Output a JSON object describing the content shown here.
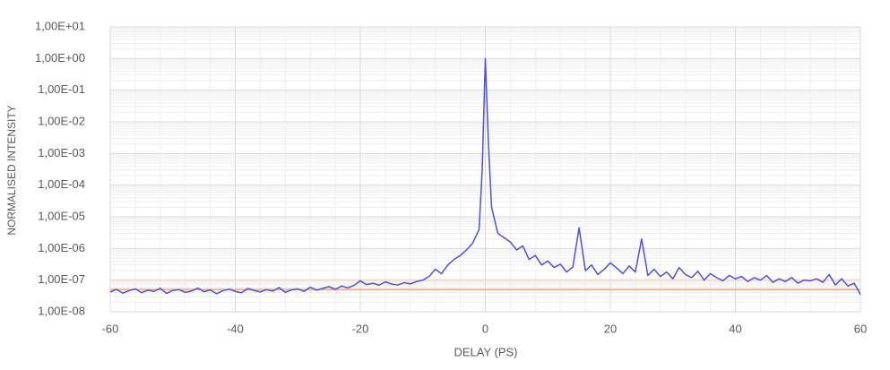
{
  "chart_data": {
    "type": "line",
    "x_label": "DELAY (PS)",
    "y_label": "NORMALISED INTENSITY",
    "x": [
      -60,
      -59,
      -58,
      -57,
      -56,
      -55,
      -54,
      -53,
      -52,
      -51,
      -50,
      -49,
      -48,
      -47,
      -46,
      -45,
      -44,
      -43,
      -42,
      -41,
      -40,
      -39,
      -38,
      -37,
      -36,
      -35,
      -34,
      -33,
      -32,
      -31,
      -30,
      -29,
      -28,
      -27,
      -26,
      -25,
      -24,
      -23,
      -22,
      -21,
      -20,
      -19,
      -18,
      -17,
      -16,
      -15,
      -14,
      -13,
      -12,
      -11,
      -10,
      -9,
      -8,
      -7,
      -6,
      -5,
      -4,
      -3,
      -2,
      -1,
      -0.5,
      0,
      0.5,
      1,
      2,
      3,
      4,
      5,
      6,
      7,
      8,
      9,
      10,
      11,
      12,
      13,
      14,
      15,
      16,
      17,
      18,
      19,
      20,
      21,
      22,
      23,
      24,
      25,
      26,
      27,
      28,
      29,
      30,
      31,
      32,
      33,
      34,
      35,
      36,
      37,
      38,
      39,
      40,
      41,
      42,
      43,
      44,
      45,
      46,
      47,
      48,
      49,
      50,
      51,
      52,
      53,
      54,
      55,
      56,
      57,
      58,
      59,
      60
    ],
    "series": [
      {
        "color": "#4f4fe0",
        "values": [
          4.2e-08,
          5.1e-08,
          3.9e-08,
          4.6e-08,
          5.3e-08,
          4e-08,
          4.8e-08,
          4.4e-08,
          5.5e-08,
          3.8e-08,
          4.7e-08,
          5e-08,
          4.1e-08,
          4.5e-08,
          5.6e-08,
          4.3e-08,
          4.9e-08,
          3.7e-08,
          4.6e-08,
          5.2e-08,
          4.4e-08,
          4e-08,
          5.4e-08,
          4.7e-08,
          4.2e-08,
          5e-08,
          4.5e-08,
          5.8e-08,
          4.1e-08,
          4.9e-08,
          5.3e-08,
          4.4e-08,
          6e-08,
          4.8e-08,
          5.5e-08,
          6.2e-08,
          5.1e-08,
          6.5e-08,
          5.7e-08,
          6.8e-08,
          9.5e-08,
          7.2e-08,
          8e-08,
          6.9e-08,
          8.8e-08,
          7.5e-08,
          7e-08,
          8.3e-08,
          7.6e-08,
          9e-08,
          1e-07,
          1.3e-07,
          2.2e-07,
          1.6e-07,
          3e-07,
          4.5e-07,
          6e-07,
          9e-07,
          1.5e-06,
          4e-06,
          0.0003,
          1.0,
          0.002,
          2e-05,
          3e-06,
          2.2e-06,
          1.6e-06,
          9e-07,
          1.2e-06,
          4.5e-07,
          6e-07,
          3e-07,
          4e-07,
          2.5e-07,
          3.2e-07,
          1.8e-07,
          2.6e-07,
          4.5e-06,
          2e-07,
          3e-07,
          1.5e-07,
          2.2e-07,
          3.5e-07,
          2.4e-07,
          1.6e-07,
          2.8e-07,
          1.8e-07,
          2e-06,
          1.4e-07,
          2.2e-07,
          1.3e-07,
          1.8e-07,
          1.1e-07,
          2.5e-07,
          1.5e-07,
          1.2e-07,
          1.9e-07,
          1e-07,
          1.6e-07,
          1.2e-07,
          9.5e-08,
          1.4e-07,
          1.1e-07,
          1.3e-07,
          9e-08,
          1.2e-07,
          1e-07,
          1.4e-07,
          8.5e-08,
          1.1e-07,
          9e-08,
          1.2e-07,
          8e-08,
          1e-07,
          9.5e-08,
          1.1e-07,
          8.5e-08,
          1.5e-07,
          7e-08,
          1.1e-07,
          6.5e-08,
          8e-08,
          3.5e-08
        ]
      }
    ],
    "hlines": [
      {
        "value": 1e-07,
        "color": "#f8d9c4"
      },
      {
        "value": 5e-08,
        "color": "#f4b183"
      }
    ],
    "xlim": [
      -60,
      60
    ],
    "xticks": [
      -60,
      -40,
      -20,
      0,
      20,
      40,
      60
    ],
    "ylim": [
      1e-08,
      10
    ],
    "log_y": true,
    "yticks": [
      {
        "value": 10,
        "label": "1,00E+01"
      },
      {
        "value": 1,
        "label": "1,00E+00"
      },
      {
        "value": 0.1,
        "label": "1,00E-01"
      },
      {
        "value": 0.01,
        "label": "1,00E-02"
      },
      {
        "value": 0.001,
        "label": "1,00E-03"
      },
      {
        "value": 0.0001,
        "label": "1,00E-04"
      },
      {
        "value": 1e-05,
        "label": "1,00E-05"
      },
      {
        "value": 1e-06,
        "label": "1,00E-06"
      },
      {
        "value": 1e-07,
        "label": "1,00E-07"
      },
      {
        "value": 1e-08,
        "label": "1,00E-08"
      }
    ],
    "grid": true
  }
}
